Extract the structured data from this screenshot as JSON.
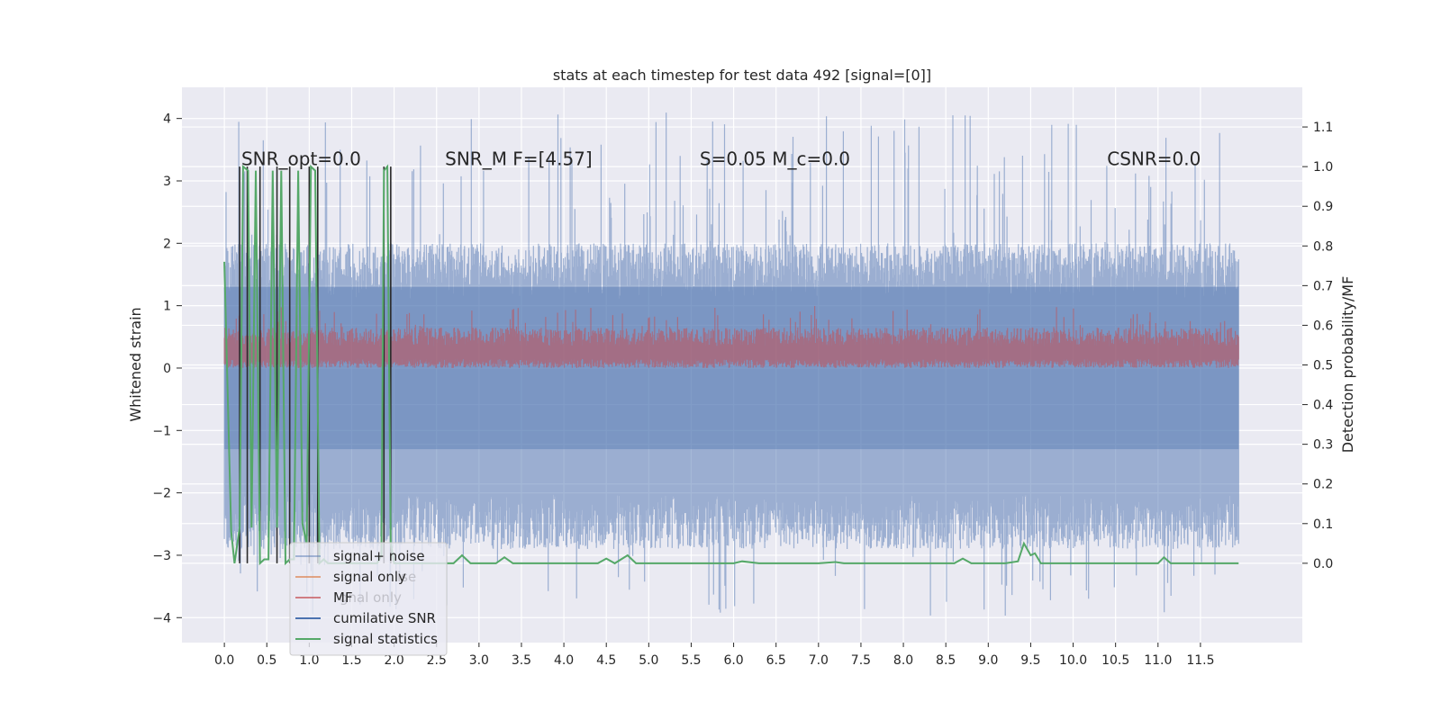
{
  "chart_data": {
    "type": "line",
    "title": "stats at each timestep for test data 492 [signal=[0]]",
    "xlabel": "",
    "ylabel": "Whitened strain",
    "ylabel_right": "Detection probability/MF",
    "xlim": [
      -0.5,
      12.7
    ],
    "ylim": [
      -4.4,
      4.5
    ],
    "ylim_right": [
      -0.2,
      1.2
    ],
    "x_ticks": [
      0.0,
      0.5,
      1.0,
      1.5,
      2.0,
      2.5,
      3.0,
      3.5,
      4.0,
      4.5,
      5.0,
      5.5,
      6.0,
      6.5,
      7.0,
      7.5,
      8.0,
      8.5,
      9.0,
      9.5,
      10.0,
      10.5,
      11.0,
      11.5
    ],
    "x_tick_labels": [
      "0.0",
      "0.5",
      "1.0",
      "1.5",
      "2.0",
      "2.5",
      "3.0",
      "3.5",
      "4.0",
      "4.5",
      "5.0",
      "5.5",
      "6.0",
      "6.5",
      "7.0",
      "7.5",
      "8.0",
      "8.5",
      "9.0",
      "9.5",
      "10.0",
      "10.5",
      "11.0",
      "11.5"
    ],
    "y_ticks": [
      -4,
      -3,
      -2,
      -1,
      0,
      1,
      2,
      3,
      4
    ],
    "y_tick_labels": [
      "−4",
      "−3",
      "−2",
      "−1",
      "0",
      "1",
      "2",
      "3",
      "4"
    ],
    "y_right_ticks": [
      0.0,
      0.1,
      0.2,
      0.3,
      0.4,
      0.5,
      0.6,
      0.7,
      0.8,
      0.9,
      1.0,
      1.1
    ],
    "y_right_tick_labels": [
      "0.0",
      "0.1",
      "0.2",
      "0.3",
      "0.4",
      "0.5",
      "0.6",
      "0.7",
      "0.8",
      "0.9",
      "1.0",
      "1.1"
    ],
    "grid": true,
    "legend_position": "lower-left",
    "noise_band": {
      "x_range": [
        0.0,
        11.95
      ],
      "typical_range": [
        -1.9,
        1.9
      ],
      "peak_range": [
        -4.0,
        4.1
      ],
      "color": "#4c72b0"
    },
    "mf_band": {
      "x_range": [
        0.0,
        11.95
      ],
      "typical_range": [
        0.05,
        0.6
      ],
      "peak_range": [
        0.0,
        1.0
      ],
      "color": "#c44e52"
    },
    "annotations": [
      {
        "text": "SNR_opt=0.0",
        "x": 0.2,
        "y": 3.25
      },
      {
        "text": "SNR_M F=[4.57]",
        "x": 2.6,
        "y": 3.25
      },
      {
        "text": "S=0.05   M_c=0.0",
        "x": 5.6,
        "y": 3.25
      },
      {
        "text": "CSNR=0.0",
        "x": 10.4,
        "y": 3.25
      }
    ],
    "vertical_lines": [
      0.18,
      0.27,
      0.42,
      0.62,
      0.77,
      1.0,
      1.1,
      1.88,
      1.96
    ],
    "series": [
      {
        "name": "signal statistics",
        "axis": "right",
        "color": "#55a868",
        "x": [
          0.0,
          0.08,
          0.12,
          0.18,
          0.22,
          0.28,
          0.32,
          0.37,
          0.42,
          0.47,
          0.52,
          0.57,
          0.62,
          0.67,
          0.72,
          0.77,
          0.82,
          0.87,
          0.92,
          0.97,
          1.02,
          1.07,
          1.12,
          1.17,
          1.22,
          1.27,
          1.5,
          1.8,
          1.85,
          1.88,
          1.92,
          1.96,
          2.0,
          2.1,
          2.3,
          2.7,
          2.8,
          2.9,
          3.2,
          3.3,
          3.4,
          3.6,
          4.0,
          4.4,
          4.5,
          4.6,
          4.75,
          4.85,
          5.5,
          6.0,
          6.1,
          6.3,
          7.0,
          7.2,
          7.3,
          8.0,
          8.6,
          8.7,
          8.8,
          9.2,
          9.35,
          9.42,
          9.5,
          9.55,
          9.62,
          10.0,
          10.5,
          11.0,
          11.07,
          11.15,
          11.95
        ],
        "values": [
          0.76,
          0.08,
          0.0,
          0.09,
          1.0,
          0.99,
          0.09,
          0.99,
          0.0,
          0.01,
          0.01,
          0.99,
          0.09,
          0.99,
          0.0,
          0.01,
          0.01,
          0.99,
          0.1,
          0.05,
          1.0,
          0.99,
          0.0,
          0.01,
          0.0,
          0.0,
          0.0,
          0.0,
          0.02,
          0.99,
          1.0,
          0.05,
          0.0,
          0.0,
          0.0,
          0.0,
          0.02,
          0.0,
          0.0,
          0.015,
          0.0,
          0.0,
          0.0,
          0.0,
          0.012,
          0.0,
          0.02,
          0.0,
          0.0,
          0.0,
          0.005,
          0.0,
          0.0,
          0.003,
          0.0,
          0.0,
          0.0,
          0.012,
          0.0,
          0.0,
          0.005,
          0.05,
          0.02,
          0.025,
          0.0,
          0.0,
          0.0,
          0.0,
          0.015,
          0.0,
          0.0
        ]
      }
    ],
    "legend": [
      {
        "label": "signal+ noise",
        "color": "#4c72b0",
        "alpha": 0.45
      },
      {
        "label": "signal only",
        "color": "#dd8452",
        "alpha": 0.7
      },
      {
        "label": "MF",
        "color": "#c44e52",
        "alpha": 0.7
      },
      {
        "label": "cumilative SNR",
        "color": "#4c72b0",
        "alpha": 1.0
      },
      {
        "label": "signal statistics",
        "color": "#55a868",
        "alpha": 1.0
      }
    ],
    "legend_ghost_text": [
      "ise",
      "gnal only"
    ]
  }
}
